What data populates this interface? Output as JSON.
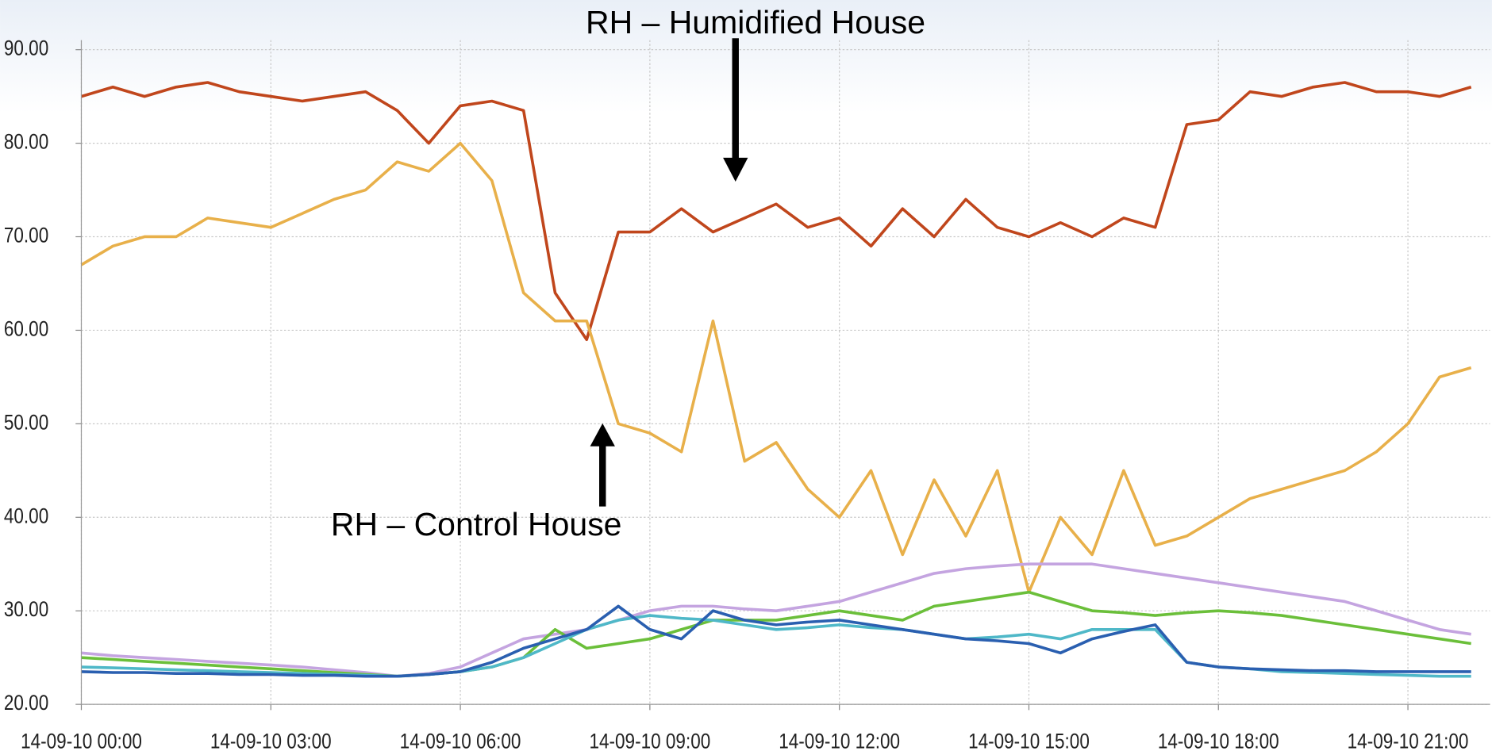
{
  "chart_data": {
    "type": "line",
    "annotations": [
      "RH – Humidified House",
      "RH – Control House"
    ],
    "x": [
      0,
      0.5,
      1,
      1.5,
      2,
      2.5,
      3,
      3.5,
      4,
      4.5,
      5,
      5.5,
      6,
      6.5,
      7,
      7.5,
      8,
      8.5,
      9,
      9.5,
      10,
      10.5,
      11,
      11.5,
      12,
      12.5,
      13,
      13.5,
      14,
      14.5,
      15,
      15.5,
      16,
      16.5,
      17,
      17.5,
      18,
      18.5,
      19,
      19.5,
      20,
      20.5,
      21,
      21.5,
      22
    ],
    "series": [
      {
        "color": "#c0461c",
        "values": [
          85,
          86,
          85,
          86,
          86.5,
          85.5,
          85,
          84.5,
          85,
          85.5,
          83.5,
          80,
          84,
          84.5,
          83.5,
          64,
          59,
          70.5,
          70.5,
          73,
          70.5,
          72,
          73.5,
          71,
          72,
          69,
          73,
          70,
          74,
          71,
          70,
          71.5,
          70,
          72,
          71,
          82,
          82.5,
          85.5,
          85,
          86,
          86.5,
          85.5,
          85.5,
          85,
          86
        ]
      },
      {
        "color": "#e8b04a",
        "values": [
          67,
          69,
          70,
          70,
          72,
          71.5,
          71,
          72.5,
          74,
          75,
          78,
          77,
          80,
          76,
          64,
          61,
          61,
          50,
          49,
          47,
          61,
          46,
          48,
          43,
          40,
          45,
          36,
          44,
          38,
          45,
          32,
          40,
          36,
          45,
          37,
          38,
          40,
          42,
          43,
          44,
          45,
          47,
          50,
          55,
          56
        ]
      },
      {
        "color": "#c4a4e0",
        "values": [
          25.5,
          25.2,
          25,
          24.8,
          24.6,
          24.4,
          24.2,
          24,
          23.7,
          23.4,
          23,
          23.3,
          24,
          25.5,
          27,
          27.5,
          28,
          29,
          30,
          30.5,
          30.5,
          30.2,
          30,
          30.5,
          31,
          32,
          33,
          34,
          34.5,
          34.8,
          35,
          35,
          35,
          34.5,
          34,
          33.5,
          33,
          32.5,
          32,
          31.5,
          31,
          30,
          29,
          28,
          27.5
        ]
      },
      {
        "color": "#6bbf3a",
        "values": [
          25,
          24.8,
          24.6,
          24.4,
          24.2,
          24,
          23.8,
          23.6,
          23.4,
          23.2,
          23,
          23.2,
          23.5,
          24,
          25,
          28,
          26,
          26.5,
          27,
          28,
          29,
          29,
          29,
          29.5,
          30,
          29.5,
          29,
          30.5,
          31,
          31.5,
          32,
          31,
          30,
          29.8,
          29.5,
          29.8,
          30,
          29.8,
          29.5,
          29,
          28.5,
          28,
          27.5,
          27,
          26.5
        ]
      },
      {
        "color": "#4fb8c8",
        "values": [
          24,
          23.9,
          23.8,
          23.7,
          23.6,
          23.5,
          23.4,
          23.3,
          23.2,
          23.1,
          23,
          23.2,
          23.5,
          24,
          25,
          26.5,
          28,
          29,
          29.5,
          29.2,
          29,
          28.5,
          28,
          28.2,
          28.5,
          28.2,
          28,
          27.5,
          27,
          27.2,
          27.5,
          27,
          28,
          28,
          28,
          24.5,
          24,
          23.8,
          23.5,
          23.4,
          23.3,
          23.2,
          23.1,
          23,
          23
        ]
      },
      {
        "color": "#2a5fb0",
        "values": [
          23.5,
          23.4,
          23.4,
          23.3,
          23.3,
          23.2,
          23.2,
          23.1,
          23.1,
          23,
          23,
          23.2,
          23.5,
          24.5,
          26,
          27,
          28,
          30.5,
          28,
          27,
          30,
          29,
          28.5,
          28.8,
          29,
          28.5,
          28,
          27.5,
          27,
          26.8,
          26.5,
          25.5,
          27,
          27.8,
          28.5,
          24.5,
          24,
          23.8,
          23.7,
          23.6,
          23.6,
          23.5,
          23.5,
          23.5,
          23.5
        ]
      }
    ],
    "xlim": [
      0,
      22.3
    ],
    "xticks": [
      {
        "value": 0,
        "label": "14-09-10 00:00"
      },
      {
        "value": 3,
        "label": "14-09-10 03:00"
      },
      {
        "value": 6,
        "label": "14-09-10 06:00"
      },
      {
        "value": 9,
        "label": "14-09-10 09:00"
      },
      {
        "value": 12,
        "label": "14-09-10 12:00"
      },
      {
        "value": 15,
        "label": "14-09-10 15:00"
      },
      {
        "value": 18,
        "label": "14-09-10 18:00"
      },
      {
        "value": 21,
        "label": "14-09-10 21:00"
      }
    ],
    "ylim": [
      20,
      90
    ],
    "yticks": [
      {
        "value": 20,
        "label": "20.00"
      },
      {
        "value": 30,
        "label": "30.00"
      },
      {
        "value": 40,
        "label": "40.00"
      },
      {
        "value": 50,
        "label": "50.00"
      },
      {
        "value": 60,
        "label": "60.00"
      },
      {
        "value": 70,
        "label": "70.00"
      },
      {
        "value": 80,
        "label": "80.00"
      },
      {
        "value": 90,
        "label": "90.00"
      }
    ],
    "grid": true
  }
}
